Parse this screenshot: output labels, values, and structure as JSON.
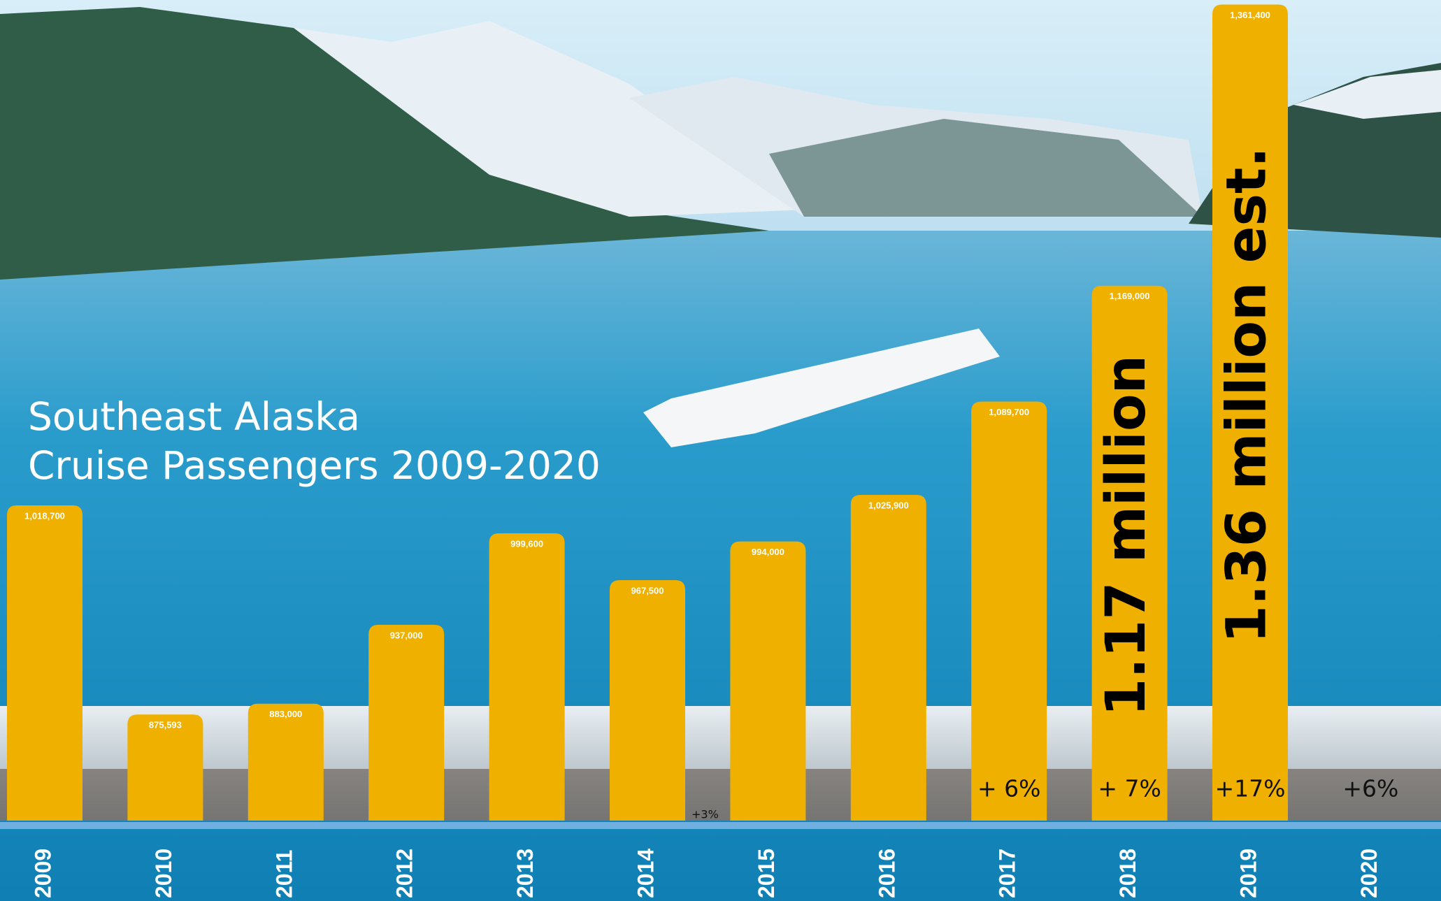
{
  "chart_data": {
    "type": "bar",
    "title": [
      "Southeast Alaska",
      "Cruise Passengers 2009-2020"
    ],
    "categories": [
      "2009",
      "2010",
      "2011",
      "2012",
      "2013",
      "2014",
      "2015",
      "2016",
      "2017",
      "2018",
      "2019",
      "2020"
    ],
    "values": [
      1018700,
      875593,
      883000,
      937000,
      999600,
      967500,
      994000,
      1025900,
      1089700,
      1169000,
      1361400,
      null
    ],
    "value_labels": [
      "1,018,700",
      "875,593",
      "883,000",
      "937,000",
      "999,600",
      "967,500",
      "994,000",
      "1,025,900",
      "1,089,700",
      "1,169,000",
      "1,361,400",
      null
    ],
    "growth_labels": [
      null,
      null,
      null,
      null,
      null,
      null,
      "+3%",
      null,
      "+ 6%",
      "+ 7%",
      "+17%",
      "+6%"
    ],
    "big_labels": [
      null,
      null,
      null,
      null,
      null,
      null,
      null,
      null,
      null,
      "1.17 million",
      "1.36 million est.",
      null
    ],
    "color": "#f0b000",
    "ylim": [
      803000,
      1364500
    ]
  }
}
